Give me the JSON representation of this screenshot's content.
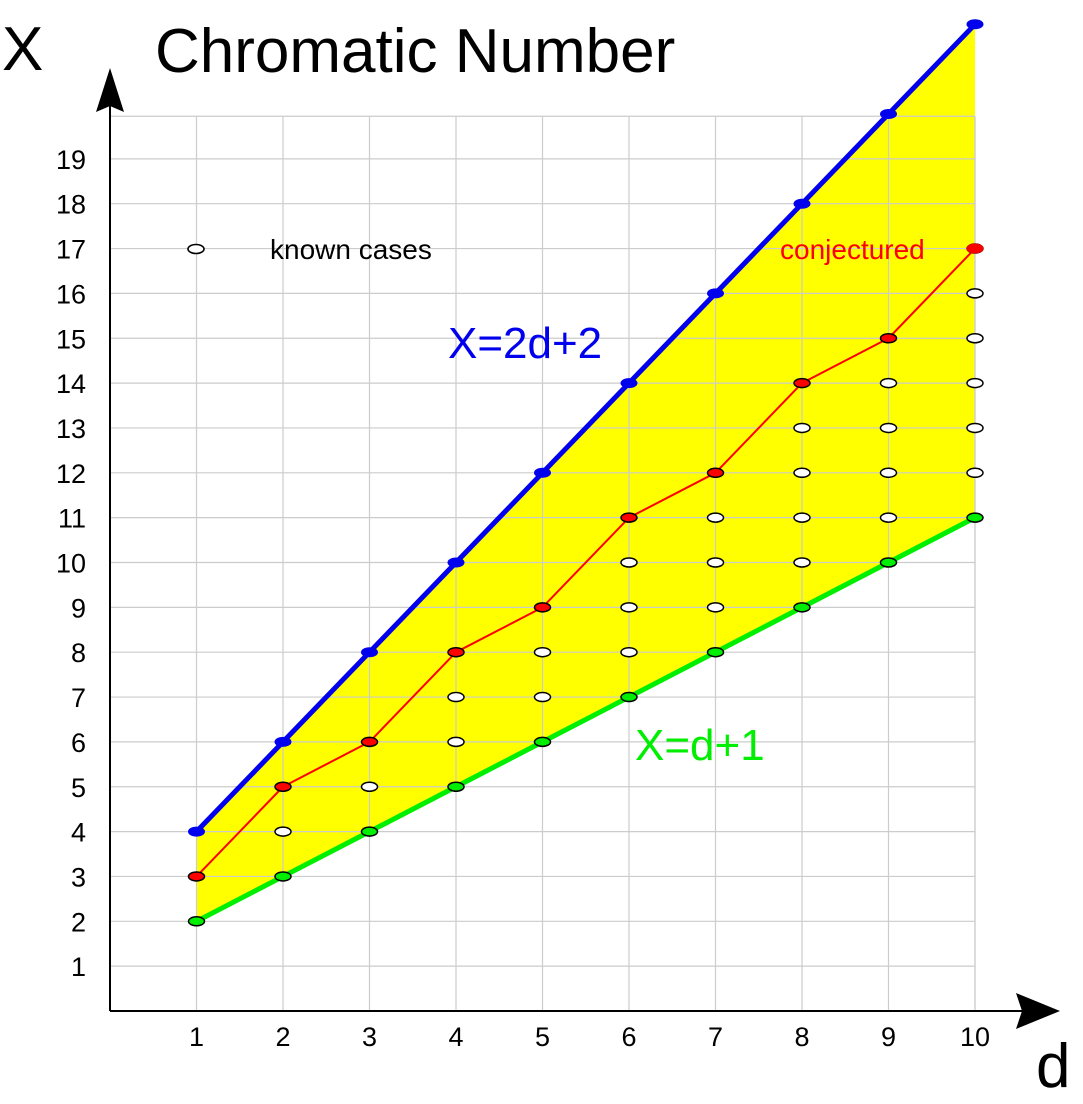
{
  "chart_data": {
    "type": "line",
    "title": "Chromatic Number",
    "xlabel": "d",
    "ylabel": "X",
    "x_ticks": [
      "1",
      "2",
      "3",
      "4",
      "5",
      "6",
      "7",
      "8",
      "9",
      "10"
    ],
    "y_ticks": [
      "1",
      "2",
      "3",
      "4",
      "5",
      "6",
      "7",
      "8",
      "9",
      "10",
      "11",
      "12",
      "13",
      "14",
      "15",
      "16",
      "17",
      "18",
      "19"
    ],
    "xlim": [
      0,
      10
    ],
    "ylim": [
      0,
      20
    ],
    "grid": true,
    "legend": {
      "label": "known cases",
      "placement": "top-left"
    },
    "annotations": {
      "upper_line": "X=2d+2",
      "lower_line": "X=d+1",
      "conjectured": "conjectured"
    },
    "colors": {
      "upper": "#0000ee",
      "lower": "#00ee00",
      "conjectured": "#ff0000",
      "region": "#ffff00",
      "grid": "#cccccc",
      "known": "#000000"
    },
    "series": [
      {
        "name": "X=2d+2",
        "x": [
          1,
          2,
          3,
          4,
          5,
          6,
          7,
          8,
          9,
          10
        ],
        "y": [
          4,
          6,
          8,
          10,
          12,
          14,
          16,
          18,
          20,
          22
        ]
      },
      {
        "name": "X=d+1",
        "x": [
          1,
          2,
          3,
          4,
          5,
          6,
          7,
          8,
          9,
          10
        ],
        "y": [
          2,
          3,
          4,
          5,
          6,
          7,
          8,
          9,
          10,
          11
        ]
      },
      {
        "name": "conjectured",
        "x": [
          1,
          2,
          3,
          4,
          5,
          6,
          7,
          8,
          9,
          10
        ],
        "y": [
          3,
          5,
          6,
          8,
          9,
          11,
          12,
          14,
          15,
          17
        ]
      }
    ],
    "known_cases": [
      [
        1,
        2
      ],
      [
        1,
        3
      ],
      [
        2,
        3
      ],
      [
        2,
        4
      ],
      [
        2,
        5
      ],
      [
        3,
        4
      ],
      [
        3,
        5
      ],
      [
        3,
        6
      ],
      [
        4,
        5
      ],
      [
        4,
        6
      ],
      [
        4,
        7
      ],
      [
        4,
        8
      ],
      [
        5,
        6
      ],
      [
        5,
        7
      ],
      [
        5,
        8
      ],
      [
        5,
        9
      ],
      [
        6,
        7
      ],
      [
        6,
        8
      ],
      [
        6,
        9
      ],
      [
        6,
        10
      ],
      [
        6,
        11
      ],
      [
        7,
        8
      ],
      [
        7,
        9
      ],
      [
        7,
        10
      ],
      [
        7,
        11
      ],
      [
        7,
        12
      ],
      [
        8,
        9
      ],
      [
        8,
        10
      ],
      [
        8,
        11
      ],
      [
        8,
        12
      ],
      [
        8,
        13
      ],
      [
        8,
        14
      ],
      [
        9,
        10
      ],
      [
        9,
        11
      ],
      [
        9,
        12
      ],
      [
        9,
        13
      ],
      [
        9,
        14
      ],
      [
        9,
        15
      ],
      [
        10,
        11
      ],
      [
        10,
        12
      ],
      [
        10,
        13
      ],
      [
        10,
        14
      ],
      [
        10,
        15
      ],
      [
        10,
        16
      ],
      [
        10,
        17
      ]
    ]
  }
}
